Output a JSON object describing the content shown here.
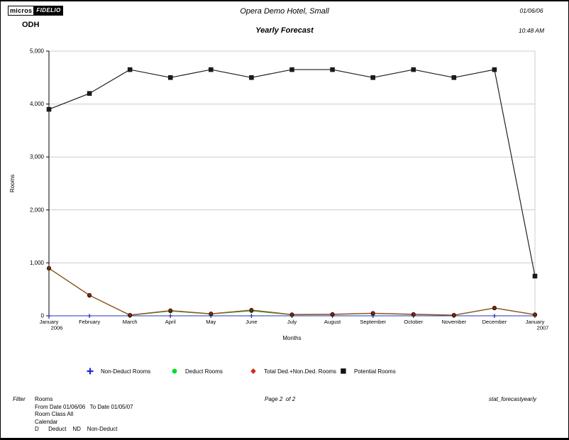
{
  "header": {
    "logo_micros": "micros",
    "logo_fidelio": "FIDELIO",
    "property_code": "ODH",
    "title": "Opera Demo Hotel, Small",
    "subtitle": "Yearly Forecast",
    "date": "01/06/06",
    "time": "10:48 AM"
  },
  "chart_data": {
    "type": "line",
    "title": "Yearly Forecast",
    "xlabel": "Months",
    "ylabel": "Rooms",
    "ylim": [
      0,
      5000
    ],
    "ytick_interval": 1000,
    "ytick_labels": [
      "0",
      "1,000",
      "2,000",
      "3,000",
      "4,000",
      "5,000"
    ],
    "grid": true,
    "legend_position": "bottom",
    "gridline_color": "#cccccc",
    "categories": [
      [
        "January",
        "2006"
      ],
      [
        "February"
      ],
      [
        "March"
      ],
      [
        "April"
      ],
      [
        "May"
      ],
      [
        "June"
      ],
      [
        "July"
      ],
      [
        "August"
      ],
      [
        "September"
      ],
      [
        "October"
      ],
      [
        "November"
      ],
      [
        "December"
      ],
      [
        "January",
        "2007"
      ]
    ],
    "series": [
      {
        "name": "Non-Deduct Rooms",
        "marker": "plus",
        "color": "#2233bb",
        "legend_color": "#1f2bd4",
        "values": [
          0,
          0,
          0,
          0,
          0,
          0,
          0,
          0,
          0,
          0,
          0,
          0,
          0
        ]
      },
      {
        "name": "Deduct Rooms",
        "marker": "circle",
        "color": "#00b400",
        "legend_color": "#00dd22",
        "values": [
          895,
          385,
          10,
          90,
          35,
          95,
          20,
          25,
          45,
          25,
          10,
          145,
          20
        ]
      },
      {
        "name": "Total Ded.+Non.Ded. Rooms",
        "marker": "diamond",
        "color": "#b4412b",
        "marker_fill": "#8f1f14",
        "legend_color": "#d42a1f",
        "values": [
          900,
          390,
          15,
          100,
          40,
          110,
          25,
          30,
          50,
          30,
          15,
          150,
          25
        ]
      },
      {
        "name": "Potential Rooms",
        "marker": "square",
        "color": "#1a1a1a",
        "legend_color": "#111111",
        "values": [
          3900,
          4200,
          4650,
          4500,
          4650,
          4500,
          4650,
          4650,
          4500,
          4650,
          4500,
          4650,
          750
        ]
      }
    ]
  },
  "footer": {
    "filter_label": "Filter",
    "filter_lines": [
      "Rooms",
      "From Date 01/06/06   To Date 01/05/07",
      "Room Class All",
      "Calendar",
      "D      Deduct    ND    Non-Deduct"
    ],
    "page_info": "Page 2  of 2",
    "report_name": "stat_forecastyearly"
  }
}
